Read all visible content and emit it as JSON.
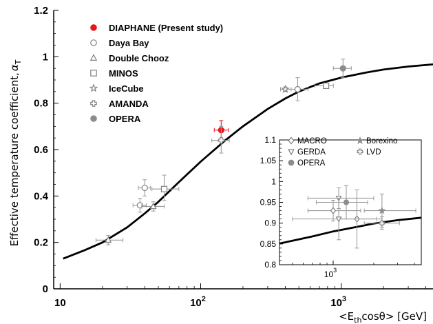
{
  "chart_data": [
    {
      "type": "scatter",
      "xscale": "log",
      "xlim": [
        9,
        4500
      ],
      "ylim": [
        0,
        1.2
      ],
      "ylabel": "Effective temperature coefficient,",
      "ylabel_symbol": "α",
      "ylabel_sub": "T",
      "xlabel_prefix": "<E",
      "xlabel_sub": "th",
      "xlabel_suffix": "cosθ> [GeV]",
      "x_ticks": [
        {
          "value": 10,
          "label": "10",
          "sup": ""
        },
        {
          "value": 100,
          "label": "10",
          "sup": "2"
        },
        {
          "value": 1000,
          "label": "10",
          "sup": "3"
        }
      ],
      "y_ticks": [
        {
          "value": 0,
          "label": "0"
        },
        {
          "value": 0.2,
          "label": "0.2"
        },
        {
          "value": 0.4,
          "label": "0.4"
        },
        {
          "value": 0.6,
          "label": "0.6"
        },
        {
          "value": 0.8,
          "label": "0.8"
        },
        {
          "value": 1.0,
          "label": "1"
        },
        {
          "value": 1.2,
          "label": "1.2"
        }
      ],
      "legend_position": "top-left",
      "theory_curve": [
        [
          10.5,
          0.13
        ],
        [
          15,
          0.167
        ],
        [
          20,
          0.2
        ],
        [
          30,
          0.265
        ],
        [
          40,
          0.325
        ],
        [
          50,
          0.375
        ],
        [
          70,
          0.46
        ],
        [
          100,
          0.548
        ],
        [
          150,
          0.64
        ],
        [
          200,
          0.7
        ],
        [
          300,
          0.775
        ],
        [
          400,
          0.82
        ],
        [
          500,
          0.85
        ],
        [
          700,
          0.885
        ],
        [
          1000,
          0.91
        ],
        [
          1500,
          0.932
        ],
        [
          2000,
          0.945
        ],
        [
          3000,
          0.958
        ],
        [
          4500,
          0.967
        ]
      ],
      "series": [
        {
          "name": "DIAPHANE (Present study)",
          "marker": "circle-filled",
          "color": "#e8141c",
          "points": [
            {
              "x": 140,
              "y": 0.684,
              "xlo": 125,
              "xhi": 158,
              "ylo": 0.645,
              "yhi": 0.725
            }
          ]
        },
        {
          "name": "Daya Bay",
          "marker": "circle-open",
          "color": "#7f7f7f",
          "points": [
            {
              "x": 40,
              "y": 0.435,
              "xlo": 36,
              "xhi": 44,
              "ylo": 0.4,
              "yhi": 0.47
            },
            {
              "x": 37,
              "y": 0.36,
              "xlo": 33,
              "xhi": 41,
              "ylo": 0.33,
              "yhi": 0.39
            },
            {
              "x": 490,
              "y": 0.86,
              "xlo": 410,
              "xhi": 580,
              "ylo": 0.81,
              "yhi": 0.91
            }
          ]
        },
        {
          "name": "Double Chooz",
          "marker": "triangle-open",
          "color": "#7f7f7f",
          "points": [
            {
              "x": 22,
              "y": 0.21,
              "xlo": 18,
              "xhi": 28,
              "ylo": 0.19,
              "yhi": 0.23
            },
            {
              "x": 46,
              "y": 0.355,
              "xlo": 38,
              "xhi": 55,
              "ylo": 0.335,
              "yhi": 0.375
            }
          ]
        },
        {
          "name": "MINOS",
          "marker": "square-open",
          "color": "#7f7f7f",
          "points": [
            {
              "x": 55,
              "y": 0.43,
              "xlo": 45,
              "xhi": 70,
              "ylo": 0.38,
              "yhi": 0.49
            },
            {
              "x": 780,
              "y": 0.875,
              "xlo": 650,
              "xhi": 880,
              "ylo": 0.865,
              "yhi": 0.885
            }
          ]
        },
        {
          "name": "IceCube",
          "marker": "star-open",
          "color": "#7f7f7f",
          "points": [
            {
              "x": 400,
              "y": 0.86,
              "xlo": 370,
              "xhi": 440,
              "ylo": 0.85,
              "yhi": 0.87
            }
          ]
        },
        {
          "name": "AMANDA",
          "marker": "cross-open",
          "color": "#7f7f7f",
          "points": [
            {
              "x": 140,
              "y": 0.64,
              "xlo": 120,
              "xhi": 160,
              "ylo": 0.585,
              "yhi": 0.7
            }
          ]
        },
        {
          "name": "OPERA",
          "marker": "circle-gray",
          "color": "#8c8c8c",
          "points": [
            {
              "x": 1030,
              "y": 0.95,
              "xlo": 880,
              "xhi": 1180,
              "ylo": 0.91,
              "yhi": 0.99
            }
          ]
        }
      ]
    },
    {
      "type": "scatter",
      "xscale": "log",
      "xlim": [
        400,
        4500
      ],
      "ylim": [
        0.8,
        1.1
      ],
      "legend_position": "top",
      "x_ticks": [
        {
          "value": 1000,
          "label": "10",
          "sup": "3"
        }
      ],
      "y_ticks": [
        {
          "value": 0.8,
          "label": "0.8"
        },
        {
          "value": 0.85,
          "label": "0.85"
        },
        {
          "value": 0.9,
          "label": "0.9"
        },
        {
          "value": 0.95,
          "label": "0.95"
        },
        {
          "value": 1.0,
          "label": "1"
        },
        {
          "value": 1.05,
          "label": "1.05"
        },
        {
          "value": 1.1,
          "label": "1.1"
        }
      ],
      "theory_curve": [
        [
          400,
          0.851
        ],
        [
          700,
          0.868
        ],
        [
          1000,
          0.88
        ],
        [
          1500,
          0.891
        ],
        [
          2000,
          0.899
        ],
        [
          3000,
          0.907
        ],
        [
          4500,
          0.913
        ]
      ],
      "series": [
        {
          "name": "MACRO",
          "marker": "diamond-open",
          "color": "#7f7f7f",
          "points": [
            {
              "x": 1000,
              "y": 0.93,
              "xlo": 650,
              "xhi": 1600,
              "ylo": 0.905,
              "yhi": 0.955
            },
            {
              "x": 1500,
              "y": 0.91,
              "xlo": 1100,
              "xhi": 2100,
              "ylo": 0.84,
              "yhi": 0.98
            }
          ]
        },
        {
          "name": "Borexino",
          "marker": "star-filled",
          "color": "#8c8c8c",
          "points": [
            {
              "x": 2300,
              "y": 0.93,
              "xlo": 1700,
              "xhi": 4100,
              "ylo": 0.89,
              "yhi": 0.97
            }
          ]
        },
        {
          "name": "GERDA",
          "marker": "triangle-down-open",
          "color": "#7f7f7f",
          "points": [
            {
              "x": 1100,
              "y": 0.96,
              "xlo": 650,
              "xhi": 2000,
              "ylo": 0.935,
              "yhi": 0.985
            },
            {
              "x": 1100,
              "y": 0.91,
              "xlo": 500,
              "xhi": 2300,
              "ylo": 0.86,
              "yhi": 0.96
            }
          ]
        },
        {
          "name": "LVD",
          "marker": "cross-open",
          "color": "#7f7f7f",
          "points": [
            {
              "x": 2300,
              "y": 0.9,
              "xlo": 1700,
              "xhi": 3100,
              "ylo": 0.885,
              "yhi": 0.915
            }
          ]
        },
        {
          "name": "OPERA",
          "marker": "circle-gray",
          "color": "#8c8c8c",
          "points": [
            {
              "x": 1250,
              "y": 0.95,
              "xlo": 750,
              "xhi": 1800,
              "ylo": 0.91,
              "yhi": 0.99
            }
          ]
        }
      ]
    }
  ]
}
